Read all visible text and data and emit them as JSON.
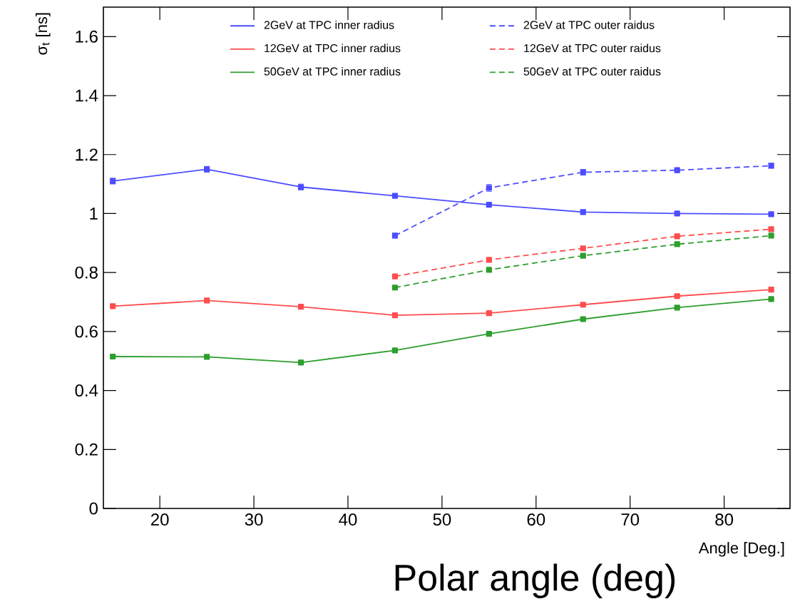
{
  "chart_data": {
    "type": "line",
    "xlabel": "Angle [Deg.]",
    "ylabel": "σ$_{t}$ [ns]",
    "annotations": [
      "Polar angle (deg)"
    ],
    "xlim": [
      14,
      87
    ],
    "ylim": [
      0,
      1.7
    ],
    "xticks": [
      20,
      30,
      40,
      50,
      60,
      70,
      80
    ],
    "yticks": [
      0,
      0.2,
      0.4,
      0.6,
      0.8,
      1,
      1.2,
      1.4,
      1.6
    ],
    "legend": "top",
    "marker": "square",
    "grid": false,
    "series": [
      {
        "name": "2GeV at TPC inner radius",
        "color": "#4d4dff",
        "line_style": "solid",
        "x": [
          15,
          25,
          35,
          45,
          55,
          65,
          75,
          85
        ],
        "values": [
          1.11,
          1.15,
          1.09,
          1.06,
          1.03,
          1.005,
          1.0,
          0.998
        ],
        "errors": [
          0.01,
          0.01,
          0.01,
          0.005,
          0.005,
          0.008,
          0.005,
          0.005
        ]
      },
      {
        "name": "2GeV at TPC outer raidus",
        "color": "#4d4dff",
        "line_style": "dashed",
        "x": [
          45,
          55,
          65,
          75,
          85
        ],
        "values": [
          0.925,
          1.087,
          1.14,
          1.147,
          1.162
        ],
        "errors": [
          0.008,
          0.012,
          0.01,
          0.008,
          0.008
        ]
      },
      {
        "name": "12GeV at TPC inner radius",
        "color": "#ff4d4d",
        "line_style": "solid",
        "x": [
          15,
          25,
          35,
          45,
          55,
          65,
          75,
          85
        ],
        "values": [
          0.686,
          0.705,
          0.684,
          0.655,
          0.662,
          0.691,
          0.72,
          0.742
        ]
      },
      {
        "name": "12GeV at TPC outer raidus",
        "color": "#ff4d4d",
        "line_style": "dashed",
        "x": [
          45,
          55,
          65,
          75,
          85
        ],
        "values": [
          0.787,
          0.843,
          0.882,
          0.923,
          0.947
        ]
      },
      {
        "name": "50GeV at TPC inner radius",
        "color": "#2e9e2e",
        "line_style": "solid",
        "x": [
          15,
          25,
          35,
          45,
          55,
          65,
          75,
          85
        ],
        "values": [
          0.515,
          0.514,
          0.495,
          0.536,
          0.592,
          0.642,
          0.681,
          0.71
        ]
      },
      {
        "name": "50GeV at TPC outer raidus",
        "color": "#2e9e2e",
        "line_style": "dashed",
        "x": [
          45,
          55,
          65,
          75,
          85
        ],
        "values": [
          0.749,
          0.809,
          0.857,
          0.896,
          0.925
        ]
      }
    ]
  }
}
